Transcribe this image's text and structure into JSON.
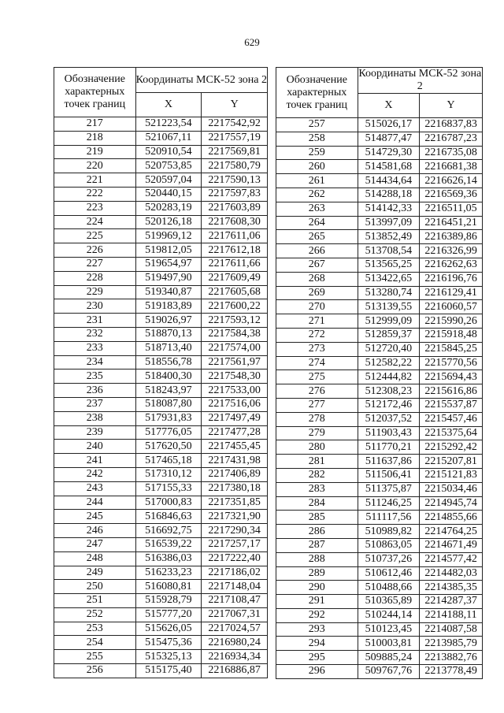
{
  "page_number": "629",
  "header": {
    "designation": "Обозначение характерных точек границ",
    "coordinates": "Координаты МСК-52 зона 2",
    "x": "X",
    "y": "Y"
  },
  "left_table": [
    [
      "217",
      "521223,54",
      "2217542,92"
    ],
    [
      "218",
      "521067,11",
      "2217557,19"
    ],
    [
      "219",
      "520910,54",
      "2217569,81"
    ],
    [
      "220",
      "520753,85",
      "2217580,79"
    ],
    [
      "221",
      "520597,04",
      "2217590,13"
    ],
    [
      "222",
      "520440,15",
      "2217597,83"
    ],
    [
      "223",
      "520283,19",
      "2217603,89"
    ],
    [
      "224",
      "520126,18",
      "2217608,30"
    ],
    [
      "225",
      "519969,12",
      "2217611,06"
    ],
    [
      "226",
      "519812,05",
      "2217612,18"
    ],
    [
      "227",
      "519654,97",
      "2217611,66"
    ],
    [
      "228",
      "519497,90",
      "2217609,49"
    ],
    [
      "229",
      "519340,87",
      "2217605,68"
    ],
    [
      "230",
      "519183,89",
      "2217600,22"
    ],
    [
      "231",
      "519026,97",
      "2217593,12"
    ],
    [
      "232",
      "518870,13",
      "2217584,38"
    ],
    [
      "233",
      "518713,40",
      "2217574,00"
    ],
    [
      "234",
      "518556,78",
      "2217561,97"
    ],
    [
      "235",
      "518400,30",
      "2217548,30"
    ],
    [
      "236",
      "518243,97",
      "2217533,00"
    ],
    [
      "237",
      "518087,80",
      "2217516,06"
    ],
    [
      "238",
      "517931,83",
      "2217497,49"
    ],
    [
      "239",
      "517776,05",
      "2217477,28"
    ],
    [
      "240",
      "517620,50",
      "2217455,45"
    ],
    [
      "241",
      "517465,18",
      "2217431,98"
    ],
    [
      "242",
      "517310,12",
      "2217406,89"
    ],
    [
      "243",
      "517155,33",
      "2217380,18"
    ],
    [
      "244",
      "517000,83",
      "2217351,85"
    ],
    [
      "245",
      "516846,63",
      "2217321,90"
    ],
    [
      "246",
      "516692,75",
      "2217290,34"
    ],
    [
      "247",
      "516539,22",
      "2217257,17"
    ],
    [
      "248",
      "516386,03",
      "2217222,40"
    ],
    [
      "249",
      "516233,23",
      "2217186,02"
    ],
    [
      "250",
      "516080,81",
      "2217148,04"
    ],
    [
      "251",
      "515928,79",
      "2217108,47"
    ],
    [
      "252",
      "515777,20",
      "2217067,31"
    ],
    [
      "253",
      "515626,05",
      "2217024,57"
    ],
    [
      "254",
      "515475,36",
      "2216980,24"
    ],
    [
      "255",
      "515325,13",
      "2216934,34"
    ],
    [
      "256",
      "515175,40",
      "2216886,87"
    ]
  ],
  "right_table": [
    [
      "257",
      "515026,17",
      "2216837,83"
    ],
    [
      "258",
      "514877,47",
      "2216787,23"
    ],
    [
      "259",
      "514729,30",
      "2216735,08"
    ],
    [
      "260",
      "514581,68",
      "2216681,38"
    ],
    [
      "261",
      "514434,64",
      "2216626,14"
    ],
    [
      "262",
      "514288,18",
      "2216569,36"
    ],
    [
      "263",
      "514142,33",
      "2216511,05"
    ],
    [
      "264",
      "513997,09",
      "2216451,21"
    ],
    [
      "265",
      "513852,49",
      "2216389,86"
    ],
    [
      "266",
      "513708,54",
      "2216326,99"
    ],
    [
      "267",
      "513565,25",
      "2216262,63"
    ],
    [
      "268",
      "513422,65",
      "2216196,76"
    ],
    [
      "269",
      "513280,74",
      "2216129,41"
    ],
    [
      "270",
      "513139,55",
      "2216060,57"
    ],
    [
      "271",
      "512999,09",
      "2215990,26"
    ],
    [
      "272",
      "512859,37",
      "2215918,48"
    ],
    [
      "273",
      "512720,40",
      "2215845,25"
    ],
    [
      "274",
      "512582,22",
      "2215770,56"
    ],
    [
      "275",
      "512444,82",
      "2215694,43"
    ],
    [
      "276",
      "512308,23",
      "2215616,86"
    ],
    [
      "277",
      "512172,46",
      "2215537,87"
    ],
    [
      "278",
      "512037,52",
      "2215457,46"
    ],
    [
      "279",
      "511903,43",
      "2215375,64"
    ],
    [
      "280",
      "511770,21",
      "2215292,42"
    ],
    [
      "281",
      "511637,86",
      "2215207,81"
    ],
    [
      "282",
      "511506,41",
      "2215121,83"
    ],
    [
      "283",
      "511375,87",
      "2215034,46"
    ],
    [
      "284",
      "511246,25",
      "2214945,74"
    ],
    [
      "285",
      "511117,56",
      "2214855,66"
    ],
    [
      "286",
      "510989,82",
      "2214764,25"
    ],
    [
      "287",
      "510863,05",
      "2214671,49"
    ],
    [
      "288",
      "510737,26",
      "2214577,42"
    ],
    [
      "289",
      "510612,46",
      "2214482,03"
    ],
    [
      "290",
      "510488,66",
      "2214385,35"
    ],
    [
      "291",
      "510365,89",
      "2214287,37"
    ],
    [
      "292",
      "510244,14",
      "2214188,11"
    ],
    [
      "293",
      "510123,45",
      "2214087,58"
    ],
    [
      "294",
      "510003,81",
      "2213985,79"
    ],
    [
      "295",
      "509885,24",
      "2213882,76"
    ],
    [
      "296",
      "509767,76",
      "2213778,49"
    ]
  ]
}
